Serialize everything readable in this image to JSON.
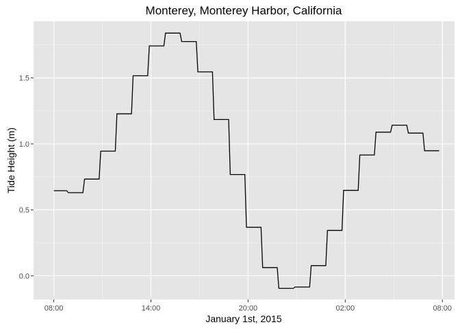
{
  "chart_data": {
    "type": "line",
    "title": "Monterey, Monterey Harbor, California",
    "xlabel": "January 1st, 2015",
    "ylabel": "Tide Height (m)",
    "x_ticks": [
      "08:00",
      "14:00",
      "20:00",
      "02:00",
      "08:00"
    ],
    "x_tick_hours": [
      0,
      6,
      12,
      18,
      24
    ],
    "x_range_hours": [
      -1.25,
      24.75
    ],
    "ylim": [
      -0.18,
      1.93
    ],
    "y_ticks": [
      0.0,
      0.5,
      1.0,
      1.5
    ],
    "y_tick_labels": [
      "0.0",
      "0.5",
      "1.0",
      "1.5"
    ],
    "grid": true,
    "background": "#e5e5e5",
    "line_color": "#000000",
    "series": [
      {
        "x_hours": [
          0.0,
          0.8,
          0.9,
          1.8,
          1.9,
          2.8,
          2.9,
          3.8,
          3.9,
          4.8,
          4.9,
          5.8,
          5.9,
          6.8,
          6.9,
          7.8,
          7.9,
          8.8,
          8.9,
          9.8,
          9.9,
          10.8,
          10.9,
          11.8,
          11.9,
          12.8,
          12.9,
          13.8,
          13.9,
          14.8,
          14.9,
          15.8,
          15.9,
          16.8,
          16.9,
          17.8,
          17.9,
          18.8,
          18.9,
          19.8,
          19.9,
          20.8,
          20.9,
          21.8,
          21.9,
          22.8,
          22.9,
          23.8
        ],
        "y": [
          0.645,
          0.645,
          0.63,
          0.63,
          0.733,
          0.733,
          0.945,
          0.945,
          1.228,
          1.228,
          1.517,
          1.517,
          1.743,
          1.743,
          1.84,
          1.84,
          1.776,
          1.776,
          1.546,
          1.546,
          1.185,
          1.185,
          0.768,
          0.768,
          0.368,
          0.368,
          0.062,
          0.062,
          -0.095,
          -0.095,
          -0.085,
          -0.085,
          0.077,
          0.077,
          0.344,
          0.344,
          0.648,
          0.648,
          0.916,
          0.916,
          1.089,
          1.089,
          1.142,
          1.142,
          1.082,
          1.082,
          0.948,
          0.948
        ]
      }
    ]
  }
}
